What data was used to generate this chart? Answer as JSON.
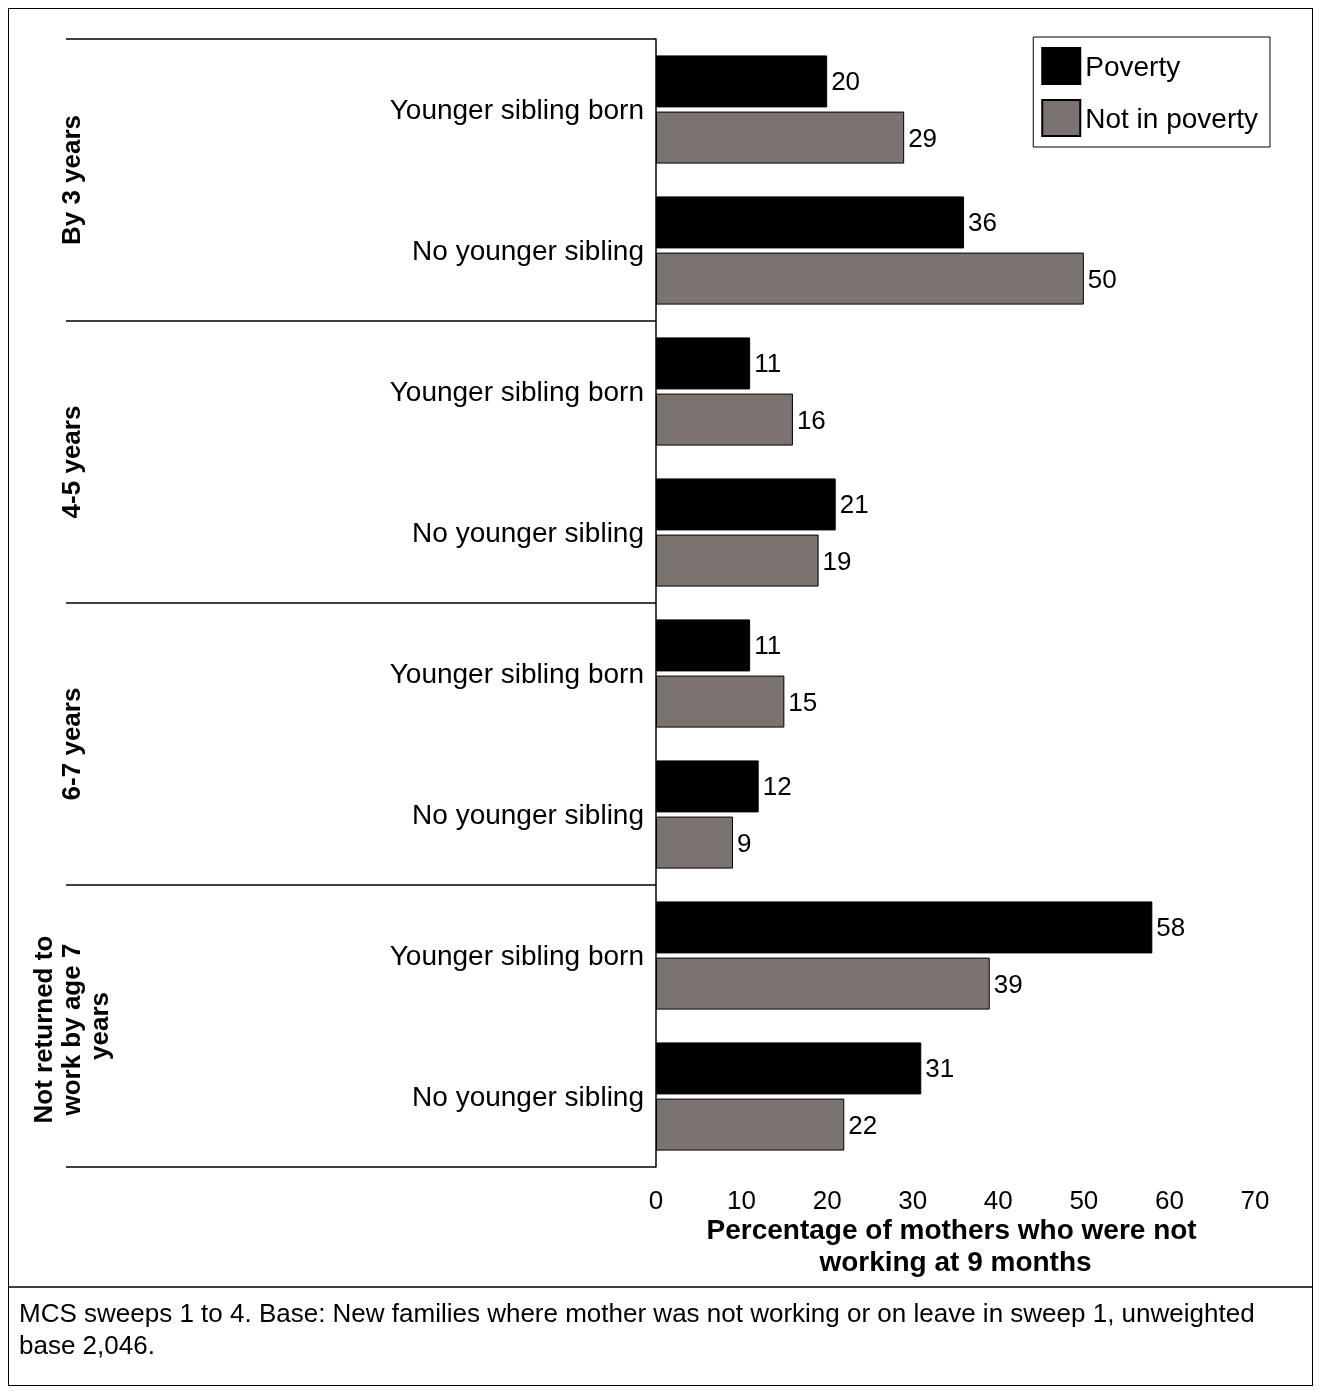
{
  "chart_data": {
    "type": "bar",
    "orientation": "horizontal",
    "categories": [
      "Younger sibling born",
      "No younger sibling",
      "Younger sibling born",
      "No younger sibling",
      "Younger sibling born",
      "No younger sibling",
      "Younger sibling born",
      "No younger sibling"
    ],
    "series": [
      {
        "name": "Poverty",
        "color": "#000000",
        "values": [
          20,
          36,
          11,
          21,
          11,
          12,
          58,
          31
        ]
      },
      {
        "name": "Not in poverty",
        "color": "#7a7370",
        "values": [
          29,
          50,
          16,
          19,
          15,
          9,
          39,
          22
        ]
      }
    ],
    "xlabel": "Percentage of mothers who were not working at 9 months",
    "xlim": [
      0,
      70
    ],
    "xticks": [
      0,
      10,
      20,
      30,
      40,
      50,
      60,
      70
    ],
    "annotations": [
      "By 3 years",
      "4-5 years",
      "6-7 years",
      "Not returned to work by age 7 years",
      "MCS sweeps 1 to 4. Base: New families where mother was not working or on leave in sweep 1, unweighted base 2,046."
    ],
    "data_labels": true,
    "legend": "top right",
    "grid": false
  }
}
